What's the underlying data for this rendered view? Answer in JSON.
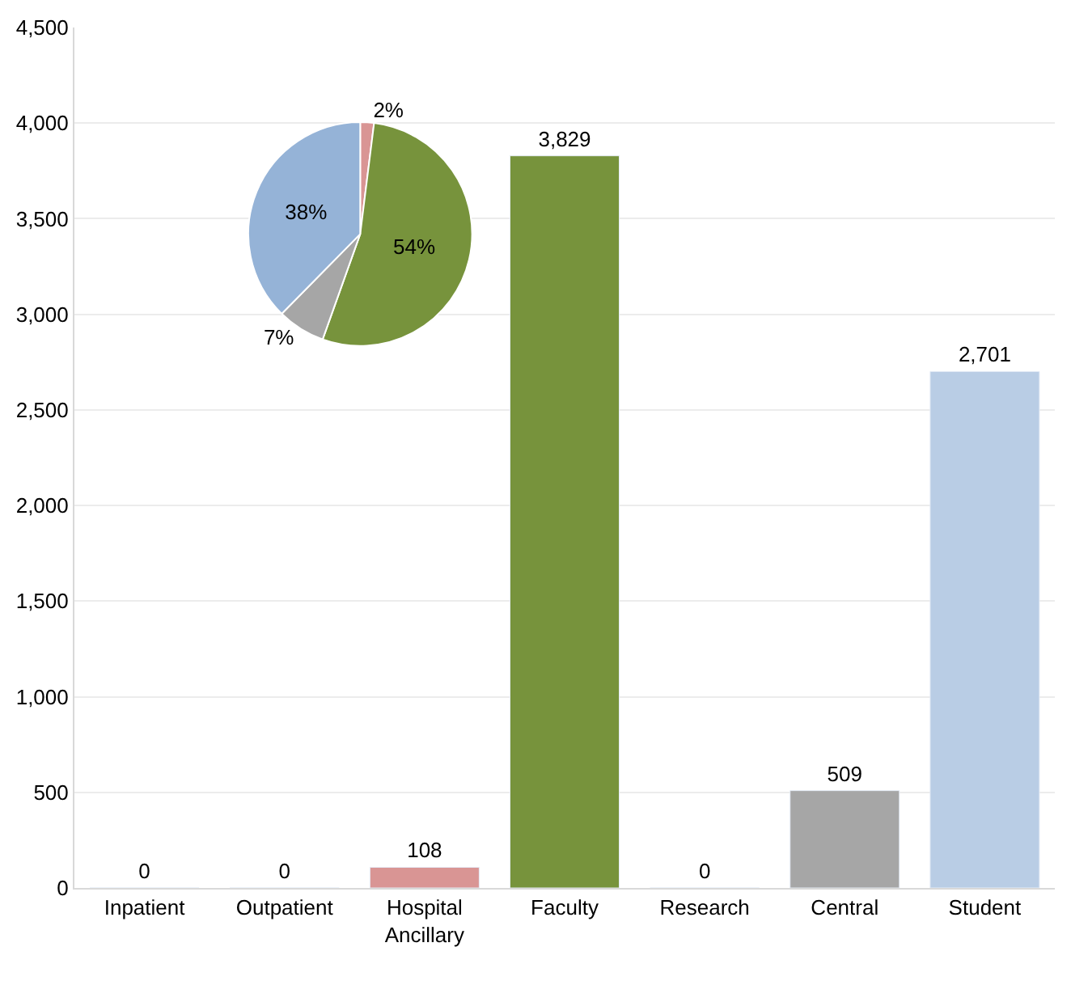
{
  "chart_data": [
    {
      "type": "bar",
      "categories": [
        "Inpatient",
        "Outpatient",
        "Hospital Ancillary",
        "Faculty",
        "Research",
        "Central",
        "Student"
      ],
      "values": [
        0,
        0,
        108,
        3829,
        0,
        509,
        2701
      ],
      "colors": [
        null,
        null,
        "#d99594",
        "#77933c",
        null,
        "#a6a6a6",
        "#b9cde5"
      ],
      "value_labels": [
        "0",
        "0",
        "108",
        "3,829",
        "0",
        "509",
        "2,701"
      ],
      "ylim": [
        0,
        4500
      ],
      "yticks": [
        0,
        {
          "value": 500,
          "label": "500"
        },
        {
          "value": 1000,
          "label": "1,000"
        },
        {
          "value": 1500,
          "label": "1,500"
        },
        {
          "value": 2000,
          "label": "2,000"
        },
        {
          "value": 2500,
          "label": "2,500"
        },
        {
          "value": 3000,
          "label": "3,000"
        },
        {
          "value": 3500,
          "label": "3,500"
        },
        {
          "value": 4000,
          "label": "4,000"
        },
        {
          "value": 4500,
          "label": "4,500"
        }
      ],
      "grid": "y",
      "legend": false
    },
    {
      "type": "pie",
      "categories": [
        null,
        null,
        null,
        null
      ],
      "values": [
        2,
        54,
        7,
        38
      ],
      "colors": [
        "#d99594",
        "#77933c",
        "#a6a6a6",
        "#95b3d7"
      ],
      "value_labels": [
        "2%",
        "54%",
        "7%",
        "38%"
      ],
      "legend": false
    }
  ]
}
